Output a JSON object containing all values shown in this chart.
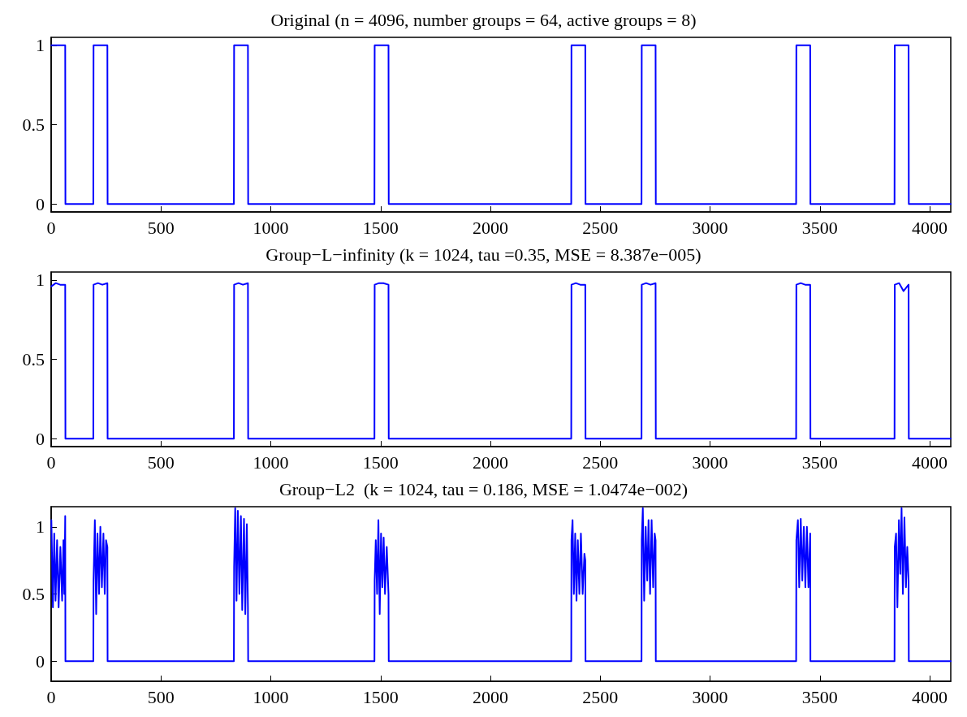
{
  "chart_data": [
    {
      "type": "line",
      "title": "Original (n = 4096, number groups = 64, active groups = 8)",
      "xlim": [
        0,
        4096
      ],
      "xticks": [
        0,
        500,
        1000,
        1500,
        2000,
        2500,
        3000,
        3500,
        4000
      ],
      "ylim": [
        -0.05,
        1.05
      ],
      "yticks": [
        0,
        0.5,
        1
      ],
      "grid": false,
      "marker": "none",
      "line_style": "solid",
      "series": [
        {
          "color": "#0000ff",
          "x": [
            1,
            64,
            65,
            192,
            193,
            256,
            257,
            832,
            833,
            896,
            897,
            1472,
            1473,
            1536,
            1537,
            2368,
            2369,
            2432,
            2433,
            2688,
            2689,
            2752,
            2753,
            3392,
            3393,
            3456,
            3457,
            3840,
            3841,
            3904,
            3905,
            4096
          ],
          "values": [
            1,
            1,
            0,
            0,
            1,
            1,
            0,
            0,
            1,
            1,
            0,
            0,
            1,
            1,
            0,
            0,
            1,
            1,
            0,
            0,
            1,
            1,
            0,
            0,
            1,
            1,
            0,
            0,
            1,
            1,
            0,
            0
          ]
        }
      ]
    },
    {
      "type": "line",
      "title": "Group−L−infinity (k = 1024, tau =0.35, MSE = 8.387e−005)",
      "xlim": [
        0,
        4096
      ],
      "xticks": [
        0,
        500,
        1000,
        1500,
        2000,
        2500,
        3000,
        3500,
        4000
      ],
      "ylim": [
        -0.05,
        1.05
      ],
      "yticks": [
        0,
        0.5,
        1
      ],
      "grid": false,
      "marker": "none",
      "line_style": "solid",
      "series": [
        {
          "color": "#0000ff",
          "x": [
            1,
            21,
            41,
            64,
            65,
            192,
            193,
            213,
            233,
            256,
            257,
            832,
            833,
            853,
            873,
            896,
            897,
            1472,
            1473,
            1493,
            1513,
            1536,
            1537,
            2368,
            2369,
            2389,
            2409,
            2432,
            2433,
            2688,
            2689,
            2709,
            2729,
            2752,
            2753,
            3392,
            3393,
            3413,
            3433,
            3456,
            3457,
            3840,
            3841,
            3861,
            3881,
            3904,
            3905,
            4096
          ],
          "values": [
            0.96,
            0.98,
            0.97,
            0.97,
            0,
            0,
            0.97,
            0.98,
            0.97,
            0.98,
            0,
            0,
            0.97,
            0.98,
            0.97,
            0.98,
            0,
            0,
            0.97,
            0.98,
            0.98,
            0.97,
            0,
            0,
            0.97,
            0.98,
            0.97,
            0.97,
            0,
            0,
            0.97,
            0.98,
            0.97,
            0.98,
            0,
            0,
            0.97,
            0.98,
            0.97,
            0.97,
            0,
            0,
            0.97,
            0.98,
            0.93,
            0.97,
            0,
            0
          ]
        }
      ]
    },
    {
      "type": "line",
      "title": "Group−L2  (k = 1024, tau = 0.186, MSE = 1.0474e−002)",
      "xlim": [
        0,
        4096
      ],
      "xticks": [
        0,
        500,
        1000,
        1500,
        2000,
        2500,
        3000,
        3500,
        4000
      ],
      "ylim": [
        -0.15,
        1.15
      ],
      "yticks": [
        0,
        0.5,
        1
      ],
      "grid": false,
      "marker": "none",
      "line_style": "solid",
      "series": [
        {
          "color": "#0000ff",
          "x": [
            1,
            8,
            14,
            20,
            27,
            34,
            42,
            50,
            56,
            60,
            64,
            65,
            192,
            193,
            199,
            205,
            211,
            218,
            224,
            231,
            238,
            244,
            250,
            256,
            257,
            832,
            833,
            838,
            844,
            850,
            857,
            864,
            870,
            878,
            884,
            891,
            896,
            897,
            1472,
            1473,
            1478,
            1484,
            1490,
            1496,
            1502,
            1508,
            1514,
            1520,
            1528,
            1536,
            1537,
            2368,
            2369,
            2374,
            2380,
            2386,
            2392,
            2398,
            2405,
            2412,
            2420,
            2428,
            2432,
            2433,
            2688,
            2689,
            2694,
            2700,
            2707,
            2714,
            2720,
            2727,
            2734,
            2741,
            2748,
            2752,
            2753,
            3392,
            3393,
            3400,
            3406,
            3413,
            3420,
            3427,
            3434,
            3441,
            3448,
            3456,
            3457,
            3840,
            3841,
            3847,
            3853,
            3860,
            3866,
            3872,
            3878,
            3885,
            3892,
            3898,
            3904,
            3905,
            4096
          ],
          "values": [
            1.05,
            0.4,
            0.95,
            0.45,
            0.9,
            0.4,
            0.85,
            0.45,
            0.9,
            0.5,
            1.08,
            0,
            0,
            0.6,
            1.05,
            0.35,
            0.95,
            0.5,
            1,
            0.55,
            0.95,
            0.5,
            0.9,
            0.85,
            0,
            0,
            0.7,
            1.14,
            0.45,
            1.12,
            0.5,
            1.08,
            0.38,
            1.06,
            0.35,
            1.02,
            0.4,
            0,
            0,
            0.6,
            0.9,
            0.5,
            1.05,
            0.35,
            0.95,
            0.55,
            0.92,
            0.5,
            0.85,
            0.5,
            0,
            0,
            0.9,
            1.05,
            0.5,
            0.95,
            0.45,
            0.9,
            0.5,
            0.95,
            0.5,
            0.8,
            0.75,
            0,
            0,
            0.9,
            1.14,
            0.45,
            1,
            0.6,
            1.05,
            0.5,
            1.05,
            0.55,
            0.95,
            0.9,
            0,
            0,
            0.9,
            1.05,
            0.55,
            1.06,
            0.6,
            1,
            0.55,
            1,
            0.55,
            0.95,
            0,
            0,
            0.85,
            0.95,
            0.4,
            1.05,
            0.65,
            1.14,
            0.5,
            1.07,
            0.55,
            0.85,
            0.6,
            0,
            0
          ]
        }
      ]
    }
  ]
}
